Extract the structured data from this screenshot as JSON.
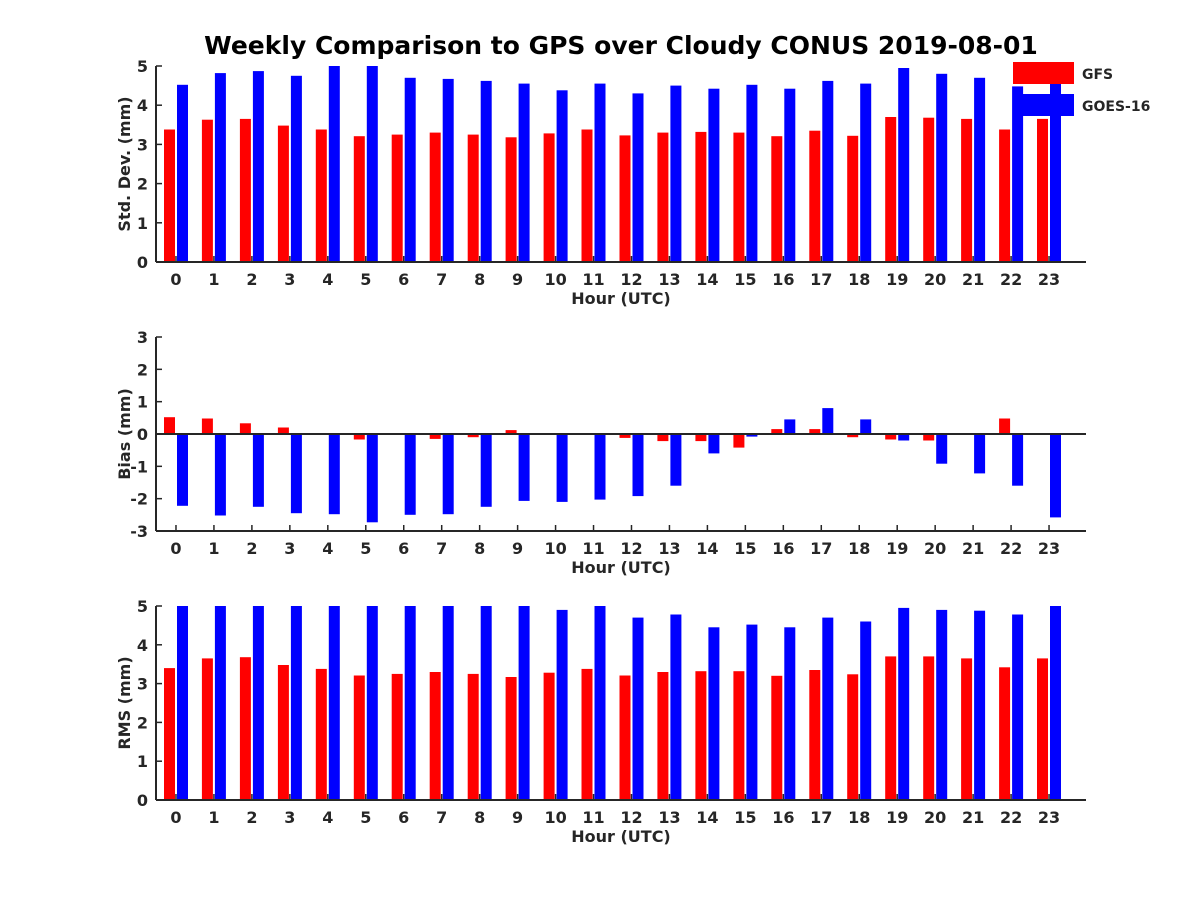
{
  "title": "Weekly Comparison to GPS over Cloudy CONUS 2019-08-01",
  "colors": {
    "GFS": "#ff0000",
    "GOES-16": "#0000ff"
  },
  "legend": {
    "placement": "top-right",
    "entries": [
      "GFS",
      "GOES-16"
    ]
  },
  "chart_data": [
    {
      "type": "bar",
      "categories": [
        "0",
        "1",
        "2",
        "3",
        "4",
        "5",
        "6",
        "7",
        "8",
        "9",
        "10",
        "11",
        "12",
        "13",
        "14",
        "15",
        "16",
        "17",
        "18",
        "19",
        "20",
        "21",
        "22",
        "23"
      ],
      "xlabel": "Hour (UTC)",
      "ylabel": "Std. Dev. (mm)",
      "ylim": [
        0,
        5
      ],
      "yticks": [
        0,
        1,
        2,
        3,
        4,
        5
      ],
      "series": [
        {
          "name": "GFS",
          "values": [
            3.38,
            3.63,
            3.65,
            3.48,
            3.38,
            3.21,
            3.25,
            3.3,
            3.25,
            3.18,
            3.28,
            3.38,
            3.23,
            3.3,
            3.32,
            3.3,
            3.21,
            3.35,
            3.22,
            3.7,
            3.68,
            3.65,
            3.38,
            3.65
          ]
        },
        {
          "name": "GOES-16",
          "values": [
            4.52,
            4.82,
            4.87,
            4.75,
            5.0,
            5.0,
            4.7,
            4.67,
            4.62,
            4.55,
            4.38,
            4.55,
            4.3,
            4.5,
            4.42,
            4.52,
            4.42,
            4.62,
            4.55,
            4.95,
            4.8,
            4.7,
            4.48,
            4.6
          ]
        }
      ]
    },
    {
      "type": "bar",
      "categories": [
        "0",
        "1",
        "2",
        "3",
        "4",
        "5",
        "6",
        "7",
        "8",
        "9",
        "10",
        "11",
        "12",
        "13",
        "14",
        "15",
        "16",
        "17",
        "18",
        "19",
        "20",
        "21",
        "22",
        "23"
      ],
      "xlabel": "Hour (UTC)",
      "ylabel": "Bias (mm)",
      "ylim": [
        -3,
        3
      ],
      "yticks": [
        -3,
        -2,
        -1,
        0,
        1,
        2,
        3
      ],
      "series": [
        {
          "name": "GFS",
          "values": [
            0.52,
            0.48,
            0.33,
            0.2,
            0.0,
            -0.17,
            -0.02,
            -0.15,
            -0.1,
            0.12,
            0.02,
            0.0,
            -0.12,
            -0.22,
            -0.22,
            -0.42,
            0.15,
            0.15,
            -0.1,
            -0.17,
            -0.2,
            0.0,
            0.48,
            0.02
          ]
        },
        {
          "name": "GOES-16",
          "values": [
            -2.22,
            -2.52,
            -2.25,
            -2.45,
            -2.48,
            -2.73,
            -2.5,
            -2.48,
            -2.25,
            -2.07,
            -2.1,
            -2.03,
            -1.92,
            -1.6,
            -0.6,
            -0.08,
            0.45,
            0.8,
            0.45,
            -0.2,
            -0.92,
            -1.22,
            -1.6,
            -2.58
          ]
        }
      ]
    },
    {
      "type": "bar",
      "categories": [
        "0",
        "1",
        "2",
        "3",
        "4",
        "5",
        "6",
        "7",
        "8",
        "9",
        "10",
        "11",
        "12",
        "13",
        "14",
        "15",
        "16",
        "17",
        "18",
        "19",
        "20",
        "21",
        "22",
        "23"
      ],
      "xlabel": "Hour (UTC)",
      "ylabel": "RMS (mm)",
      "ylim": [
        0,
        5
      ],
      "yticks": [
        0,
        1,
        2,
        3,
        4,
        5
      ],
      "series": [
        {
          "name": "GFS",
          "values": [
            3.4,
            3.65,
            3.68,
            3.48,
            3.38,
            3.21,
            3.25,
            3.3,
            3.25,
            3.17,
            3.28,
            3.38,
            3.21,
            3.3,
            3.32,
            3.32,
            3.2,
            3.35,
            3.24,
            3.7,
            3.7,
            3.65,
            3.42,
            3.65
          ]
        },
        {
          "name": "GOES-16",
          "values": [
            5.0,
            5.0,
            5.0,
            5.0,
            5.0,
            5.0,
            5.0,
            5.0,
            5.0,
            5.0,
            4.9,
            5.0,
            4.7,
            4.78,
            4.45,
            4.52,
            4.45,
            4.7,
            4.6,
            4.95,
            4.9,
            4.88,
            4.78,
            5.0
          ]
        }
      ]
    }
  ]
}
